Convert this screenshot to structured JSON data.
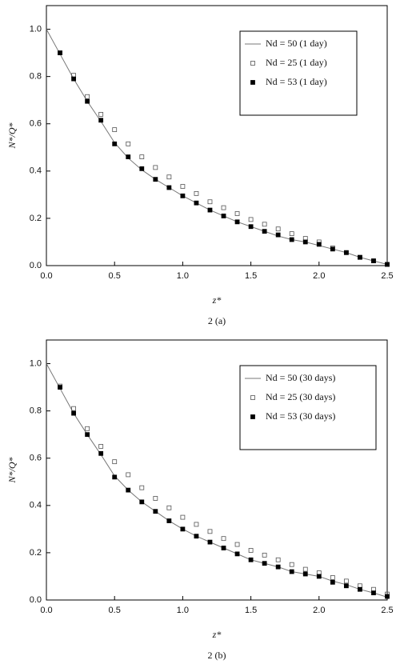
{
  "chart_data": [
    {
      "type": "line",
      "caption": "2 (a)",
      "x_label": "z*",
      "y_label": "N*/Q*",
      "xlim": [
        0,
        2.5
      ],
      "ylim": [
        0,
        1.1
      ],
      "xticks": [
        {
          "value": 0,
          "label": "0.0"
        },
        0.5,
        {
          "value": 1,
          "label": "1.0"
        },
        1.5,
        {
          "value": 2,
          "label": "2.0"
        },
        2.5
      ],
      "yticks": [
        {
          "value": 0,
          "label": "0.0"
        },
        0.2,
        0.4,
        0.6,
        0.8,
        {
          "value": 1,
          "label": "1.0"
        }
      ],
      "legend": "upper right",
      "series": [
        {
          "name": "Nd = 50 (1 day)",
          "color": "#777777",
          "style": "line",
          "x": [
            0,
            0.1,
            0.2,
            0.3,
            0.4,
            0.5,
            0.6,
            0.7,
            0.8,
            0.9,
            1,
            1.1,
            1.2,
            1.3,
            1.4,
            1.5,
            1.6,
            1.7,
            1.8,
            1.9,
            2,
            2.1,
            2.2,
            2.3,
            2.4,
            2.5
          ],
          "values": [
            1.0,
            0.895,
            0.79,
            0.695,
            0.61,
            0.52,
            0.455,
            0.405,
            0.365,
            0.33,
            0.295,
            0.265,
            0.235,
            0.21,
            0.185,
            0.165,
            0.145,
            0.125,
            0.11,
            0.1,
            0.085,
            0.07,
            0.055,
            0.035,
            0.02,
            0.005
          ]
        },
        {
          "name": "Nd = 25 (1 day)",
          "color": "#555555",
          "style": "open-square",
          "x": [
            0.1,
            0.2,
            0.3,
            0.4,
            0.5,
            0.6,
            0.7,
            0.8,
            0.9,
            1,
            1.1,
            1.2,
            1.3,
            1.4,
            1.5,
            1.6,
            1.7,
            1.8,
            1.9,
            2,
            2.1,
            2.2,
            2.3,
            2.4,
            2.5
          ],
          "values": [
            0.9,
            0.805,
            0.715,
            0.64,
            0.575,
            0.515,
            0.46,
            0.415,
            0.375,
            0.335,
            0.305,
            0.27,
            0.245,
            0.22,
            0.195,
            0.175,
            0.155,
            0.135,
            0.115,
            0.1,
            0.075,
            0.055,
            0.035,
            0.02,
            0.005
          ]
        },
        {
          "name": "Nd = 53 (1 day)",
          "color": "#000000",
          "style": "filled-square",
          "x": [
            0.1,
            0.2,
            0.3,
            0.4,
            0.5,
            0.6,
            0.7,
            0.8,
            0.9,
            1,
            1.1,
            1.2,
            1.3,
            1.4,
            1.5,
            1.6,
            1.7,
            1.8,
            1.9,
            2,
            2.1,
            2.2,
            2.3,
            2.4,
            2.5
          ],
          "values": [
            0.9,
            0.79,
            0.695,
            0.615,
            0.515,
            0.46,
            0.41,
            0.365,
            0.33,
            0.295,
            0.265,
            0.235,
            0.21,
            0.185,
            0.165,
            0.145,
            0.13,
            0.11,
            0.1,
            0.09,
            0.07,
            0.055,
            0.035,
            0.02,
            0.005
          ]
        }
      ]
    },
    {
      "type": "line",
      "caption": "2 (b)",
      "x_label": "z*",
      "y_label": "N*/Q*",
      "xlim": [
        0,
        2.5
      ],
      "ylim": [
        0,
        1.1
      ],
      "xticks": [
        {
          "value": 0,
          "label": "0.0"
        },
        0.5,
        {
          "value": 1,
          "label": "1.0"
        },
        1.5,
        {
          "value": 2,
          "label": "2.0"
        },
        2.5
      ],
      "yticks": [
        {
          "value": 0,
          "label": "0.0"
        },
        0.2,
        0.4,
        0.6,
        0.8,
        {
          "value": 1,
          "label": "1.0"
        }
      ],
      "legend": "upper right",
      "series": [
        {
          "name": "Nd = 50 (30 days)",
          "color": "#777777",
          "style": "line",
          "x": [
            0,
            0.1,
            0.2,
            0.3,
            0.4,
            0.5,
            0.6,
            0.7,
            0.8,
            0.9,
            1,
            1.1,
            1.2,
            1.3,
            1.4,
            1.5,
            1.6,
            1.7,
            1.8,
            1.9,
            2,
            2.1,
            2.2,
            2.3,
            2.4,
            2.5
          ],
          "values": [
            1.0,
            0.895,
            0.79,
            0.7,
            0.615,
            0.525,
            0.465,
            0.415,
            0.375,
            0.335,
            0.3,
            0.27,
            0.245,
            0.22,
            0.195,
            0.17,
            0.155,
            0.14,
            0.12,
            0.11,
            0.1,
            0.08,
            0.065,
            0.045,
            0.03,
            0.012
          ]
        },
        {
          "name": "Nd = 25 (30 days)",
          "color": "#555555",
          "style": "open-square",
          "x": [
            0.1,
            0.2,
            0.3,
            0.4,
            0.5,
            0.6,
            0.7,
            0.8,
            0.9,
            1,
            1.1,
            1.2,
            1.3,
            1.4,
            1.5,
            1.6,
            1.7,
            1.8,
            1.9,
            2,
            2.1,
            2.2,
            2.3,
            2.4,
            2.5
          ],
          "values": [
            0.905,
            0.81,
            0.725,
            0.65,
            0.585,
            0.53,
            0.475,
            0.43,
            0.39,
            0.35,
            0.32,
            0.29,
            0.26,
            0.235,
            0.21,
            0.19,
            0.17,
            0.15,
            0.13,
            0.115,
            0.095,
            0.08,
            0.06,
            0.045,
            0.025
          ]
        },
        {
          "name": "Nd = 53 (30 days)",
          "color": "#000000",
          "style": "filled-square",
          "x": [
            0.1,
            0.2,
            0.3,
            0.4,
            0.5,
            0.6,
            0.7,
            0.8,
            0.9,
            1,
            1.1,
            1.2,
            1.3,
            1.4,
            1.5,
            1.6,
            1.7,
            1.8,
            1.9,
            2,
            2.1,
            2.2,
            2.3,
            2.4,
            2.5
          ],
          "values": [
            0.9,
            0.79,
            0.7,
            0.62,
            0.52,
            0.465,
            0.415,
            0.375,
            0.335,
            0.3,
            0.27,
            0.245,
            0.22,
            0.195,
            0.17,
            0.155,
            0.14,
            0.12,
            0.11,
            0.1,
            0.075,
            0.06,
            0.045,
            0.03,
            0.015
          ]
        }
      ]
    }
  ]
}
